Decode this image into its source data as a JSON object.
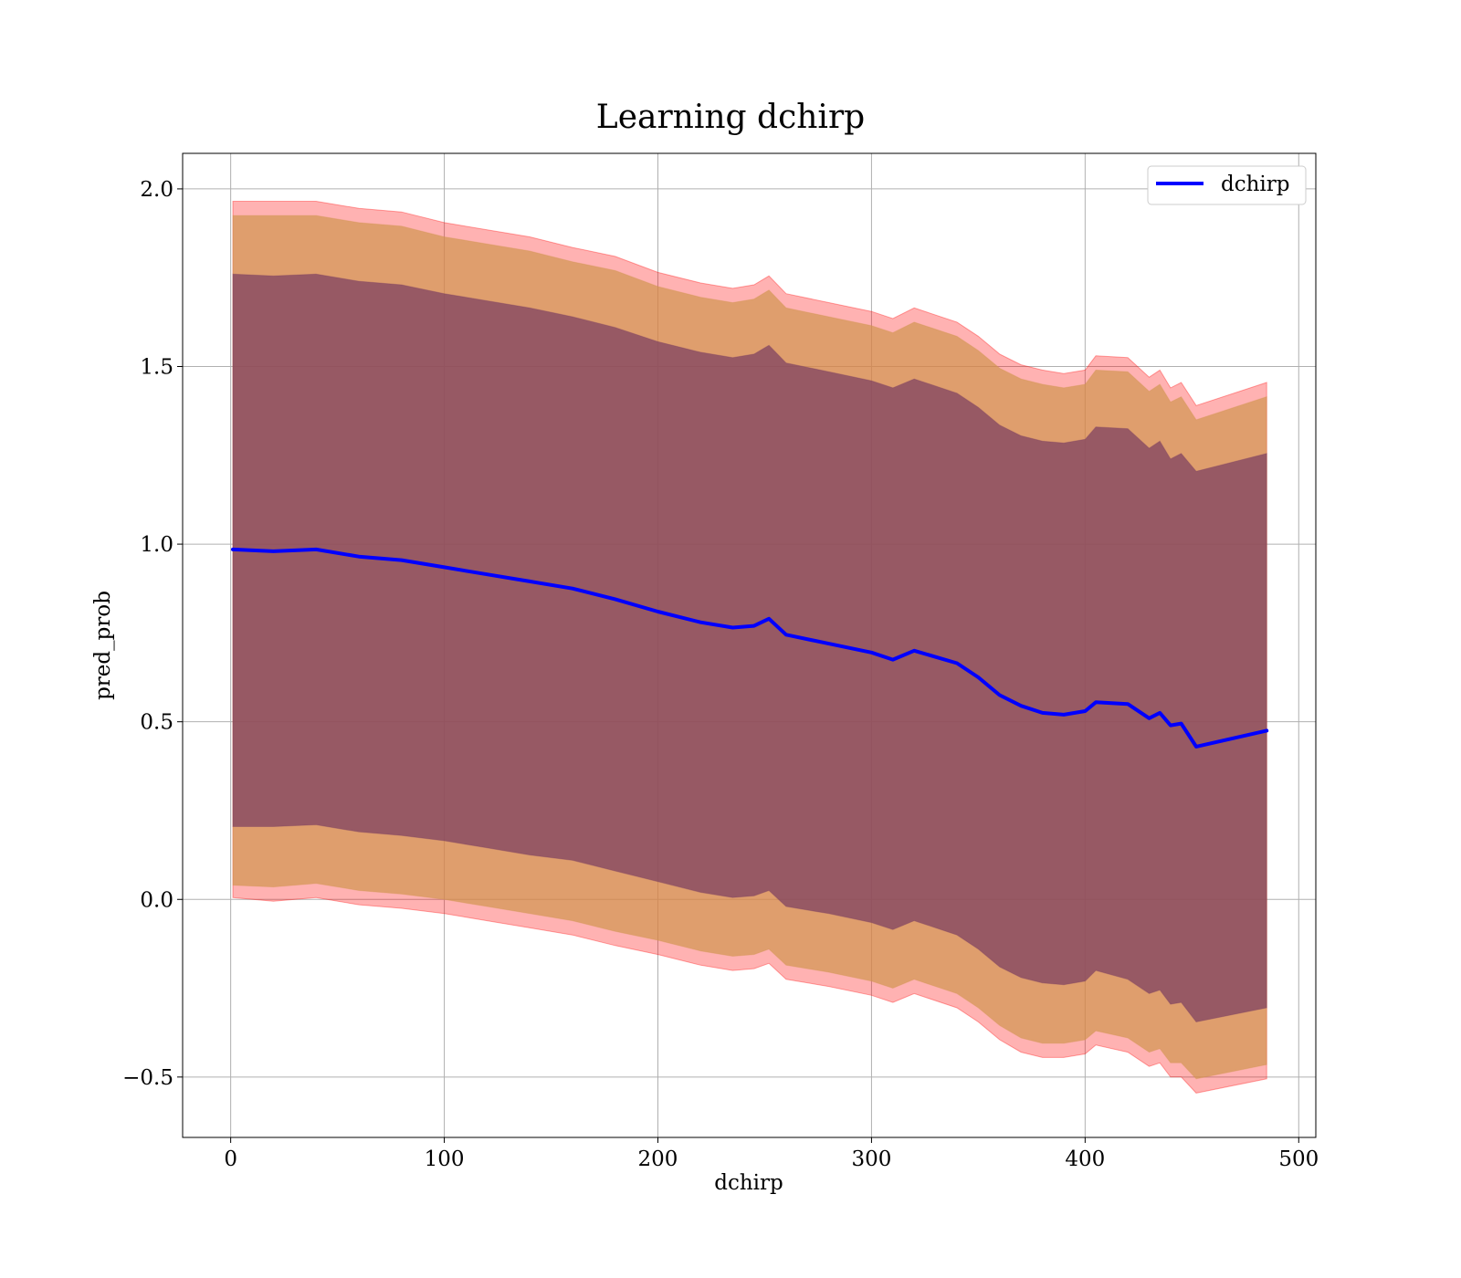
{
  "chart_data": {
    "type": "area",
    "title": "Learning dchirp",
    "xlabel": "dchirp",
    "ylabel": "pred_prob",
    "xlim": [
      -22.5,
      508
    ],
    "ylim": [
      -0.67,
      2.1
    ],
    "xticks": [
      0,
      100,
      200,
      300,
      400,
      500
    ],
    "xtick_labels": [
      "0",
      "100",
      "200",
      "300",
      "400",
      "500"
    ],
    "yticks": [
      -0.5,
      0.0,
      0.5,
      1.0,
      1.5,
      2.0
    ],
    "ytick_labels": [
      "−0.5",
      "0.0",
      "0.5",
      "1.0",
      "1.5",
      "2.0"
    ],
    "grid": true,
    "legend": {
      "placement": "top-right",
      "entries": [
        "dchirp"
      ]
    },
    "colors": {
      "line": "#0000ff",
      "outer_band": "#ff0000",
      "middle_band": "#d29650",
      "inner_band": "#7b3f61"
    },
    "series": [
      {
        "name": "dchirp",
        "x": [
          1,
          20,
          40,
          60,
          80,
          100,
          120,
          140,
          160,
          180,
          200,
          220,
          235,
          245,
          252,
          260,
          280,
          300,
          310,
          320,
          340,
          350,
          360,
          370,
          380,
          390,
          400,
          405,
          420,
          430,
          435,
          440,
          445,
          452,
          485
        ],
        "y": [
          0.985,
          0.98,
          0.985,
          0.965,
          0.955,
          0.935,
          0.915,
          0.895,
          0.875,
          0.845,
          0.81,
          0.78,
          0.765,
          0.77,
          0.79,
          0.745,
          0.72,
          0.695,
          0.675,
          0.7,
          0.665,
          0.625,
          0.575,
          0.545,
          0.525,
          0.52,
          0.53,
          0.555,
          0.55,
          0.51,
          0.525,
          0.49,
          0.495,
          0.43,
          0.475
        ]
      }
    ],
    "bands": [
      {
        "x": [
          1,
          20,
          40,
          60,
          80,
          100,
          120,
          140,
          160,
          180,
          200,
          220,
          235,
          245,
          252,
          260,
          280,
          300,
          310,
          320,
          340,
          350,
          360,
          370,
          380,
          390,
          400,
          405,
          420,
          430,
          435,
          440,
          445,
          452,
          485
        ],
        "upper": [
          1.965,
          1.965,
          1.965,
          1.945,
          1.935,
          1.905,
          1.885,
          1.865,
          1.835,
          1.81,
          1.765,
          1.735,
          1.72,
          1.73,
          1.755,
          1.705,
          1.68,
          1.655,
          1.635,
          1.665,
          1.625,
          1.585,
          1.535,
          1.505,
          1.49,
          1.48,
          1.49,
          1.53,
          1.525,
          1.47,
          1.49,
          1.44,
          1.455,
          1.39,
          1.455
        ],
        "lower": [
          0.005,
          -0.005,
          0.005,
          -0.015,
          -0.025,
          -0.04,
          -0.06,
          -0.08,
          -0.1,
          -0.13,
          -0.155,
          -0.185,
          -0.2,
          -0.195,
          -0.18,
          -0.225,
          -0.245,
          -0.27,
          -0.29,
          -0.265,
          -0.305,
          -0.345,
          -0.395,
          -0.43,
          -0.445,
          -0.445,
          -0.435,
          -0.41,
          -0.43,
          -0.47,
          -0.46,
          -0.5,
          -0.5,
          -0.545,
          -0.505
        ]
      },
      {
        "x": [
          1,
          20,
          40,
          60,
          80,
          100,
          120,
          140,
          160,
          180,
          200,
          220,
          235,
          245,
          252,
          260,
          280,
          300,
          310,
          320,
          340,
          350,
          360,
          370,
          380,
          390,
          400,
          405,
          420,
          430,
          435,
          440,
          445,
          452,
          485
        ],
        "upper": [
          1.925,
          1.925,
          1.925,
          1.905,
          1.895,
          1.865,
          1.845,
          1.825,
          1.795,
          1.77,
          1.725,
          1.695,
          1.68,
          1.69,
          1.715,
          1.665,
          1.64,
          1.615,
          1.595,
          1.625,
          1.585,
          1.545,
          1.495,
          1.465,
          1.45,
          1.44,
          1.45,
          1.49,
          1.485,
          1.43,
          1.45,
          1.4,
          1.415,
          1.35,
          1.415
        ],
        "lower": [
          0.04,
          0.035,
          0.045,
          0.025,
          0.015,
          0.0,
          -0.02,
          -0.04,
          -0.06,
          -0.09,
          -0.115,
          -0.145,
          -0.16,
          -0.155,
          -0.14,
          -0.185,
          -0.205,
          -0.23,
          -0.25,
          -0.225,
          -0.265,
          -0.305,
          -0.355,
          -0.39,
          -0.405,
          -0.405,
          -0.395,
          -0.37,
          -0.39,
          -0.43,
          -0.42,
          -0.46,
          -0.46,
          -0.505,
          -0.465
        ]
      },
      {
        "x": [
          1,
          20,
          40,
          60,
          80,
          100,
          120,
          140,
          160,
          180,
          200,
          220,
          235,
          245,
          252,
          260,
          280,
          300,
          310,
          320,
          340,
          350,
          360,
          370,
          380,
          390,
          400,
          405,
          420,
          430,
          435,
          440,
          445,
          452,
          485
        ],
        "upper": [
          1.76,
          1.755,
          1.76,
          1.74,
          1.73,
          1.705,
          1.685,
          1.665,
          1.64,
          1.61,
          1.57,
          1.54,
          1.525,
          1.535,
          1.56,
          1.51,
          1.485,
          1.46,
          1.44,
          1.465,
          1.425,
          1.385,
          1.335,
          1.305,
          1.29,
          1.285,
          1.295,
          1.33,
          1.325,
          1.27,
          1.29,
          1.24,
          1.255,
          1.205,
          1.255
        ],
        "lower": [
          0.205,
          0.205,
          0.21,
          0.19,
          0.18,
          0.165,
          0.145,
          0.125,
          0.11,
          0.08,
          0.05,
          0.02,
          0.005,
          0.01,
          0.025,
          -0.02,
          -0.04,
          -0.065,
          -0.085,
          -0.06,
          -0.1,
          -0.14,
          -0.19,
          -0.22,
          -0.235,
          -0.24,
          -0.23,
          -0.2,
          -0.225,
          -0.265,
          -0.255,
          -0.295,
          -0.29,
          -0.345,
          -0.305
        ]
      }
    ]
  }
}
